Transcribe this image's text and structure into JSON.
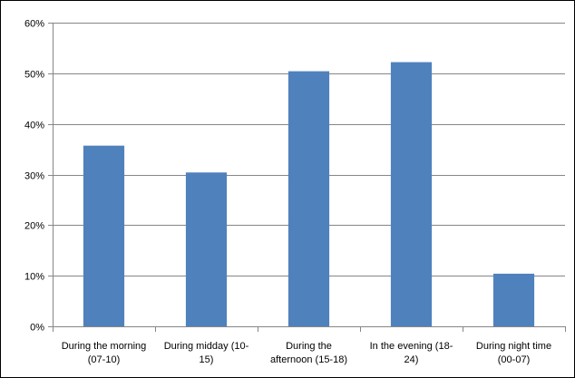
{
  "chart_data": {
    "type": "bar",
    "title": "",
    "xlabel": "",
    "ylabel": "",
    "categories": [
      [
        "During the morning",
        "(07-10)"
      ],
      [
        "During midday (10-",
        "15)"
      ],
      [
        "During the",
        "afternoon (15-18)"
      ],
      [
        "In the evening (18-",
        "24)"
      ],
      [
        "During night time",
        "(00-07)"
      ]
    ],
    "values": [
      0.357,
      0.304,
      0.504,
      0.522,
      0.104
    ],
    "ylim": [
      0,
      0.6
    ],
    "yticks": [
      0,
      0.1,
      0.2,
      0.3,
      0.4,
      0.5,
      0.6
    ],
    "ytick_labels": [
      "0%",
      "10%",
      "20%",
      "30%",
      "40%",
      "50%",
      "60%"
    ],
    "grid": true,
    "legend": "none",
    "bar_color": "#4f81bd",
    "grid_color": "#868686",
    "axis_color": "#868686"
  }
}
